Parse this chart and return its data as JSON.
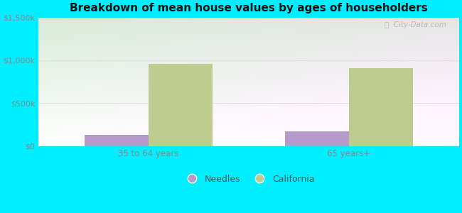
{
  "title": "Breakdown of mean house values by ages of householders",
  "categories": [
    "35 to 64 years",
    "65 years+"
  ],
  "needles_values": [
    130000,
    170000
  ],
  "california_values": [
    960000,
    910000
  ],
  "needles_color": "#b899cc",
  "california_color": "#bfcc8f",
  "background_color": "#00eeff",
  "ylim": [
    0,
    1500000
  ],
  "yticks": [
    0,
    500000,
    1000000,
    1500000
  ],
  "ytick_labels": [
    "$0",
    "$500k",
    "$1,000k",
    "$1,500k"
  ],
  "legend_labels": [
    "Needles",
    "California"
  ],
  "watermark": "ⓘ  City-Data.com",
  "bar_width": 0.32,
  "tick_color": "#888888",
  "title_color": "#111111",
  "grid_color": "#dddddd"
}
